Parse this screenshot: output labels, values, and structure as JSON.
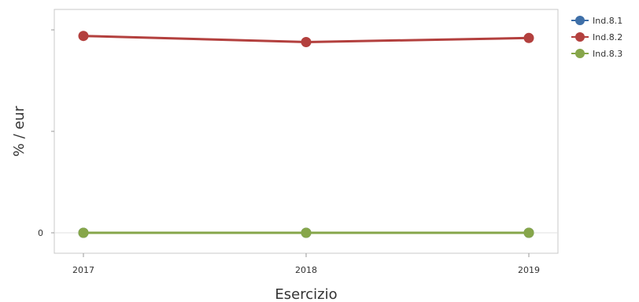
{
  "chart_data": {
    "type": "line",
    "title": "",
    "xlabel": "Esercizio",
    "ylabel": "% / eur",
    "categories": [
      "2017",
      "2018",
      "2019"
    ],
    "y_tick_labels": [
      "0"
    ],
    "ylim": [
      -0.12,
      1.0
    ],
    "grid": false,
    "legend_position": "top-right",
    "series": [
      {
        "name": "Ind.8.1",
        "color": "#3E6FA8",
        "values": [
          0,
          0,
          0
        ]
      },
      {
        "name": "Ind.8.2",
        "color": "#B3403E",
        "values": [
          0.97,
          0.94,
          0.96
        ]
      },
      {
        "name": "Ind.8.3",
        "color": "#86A64A",
        "values": [
          0,
          0,
          0
        ]
      }
    ]
  }
}
